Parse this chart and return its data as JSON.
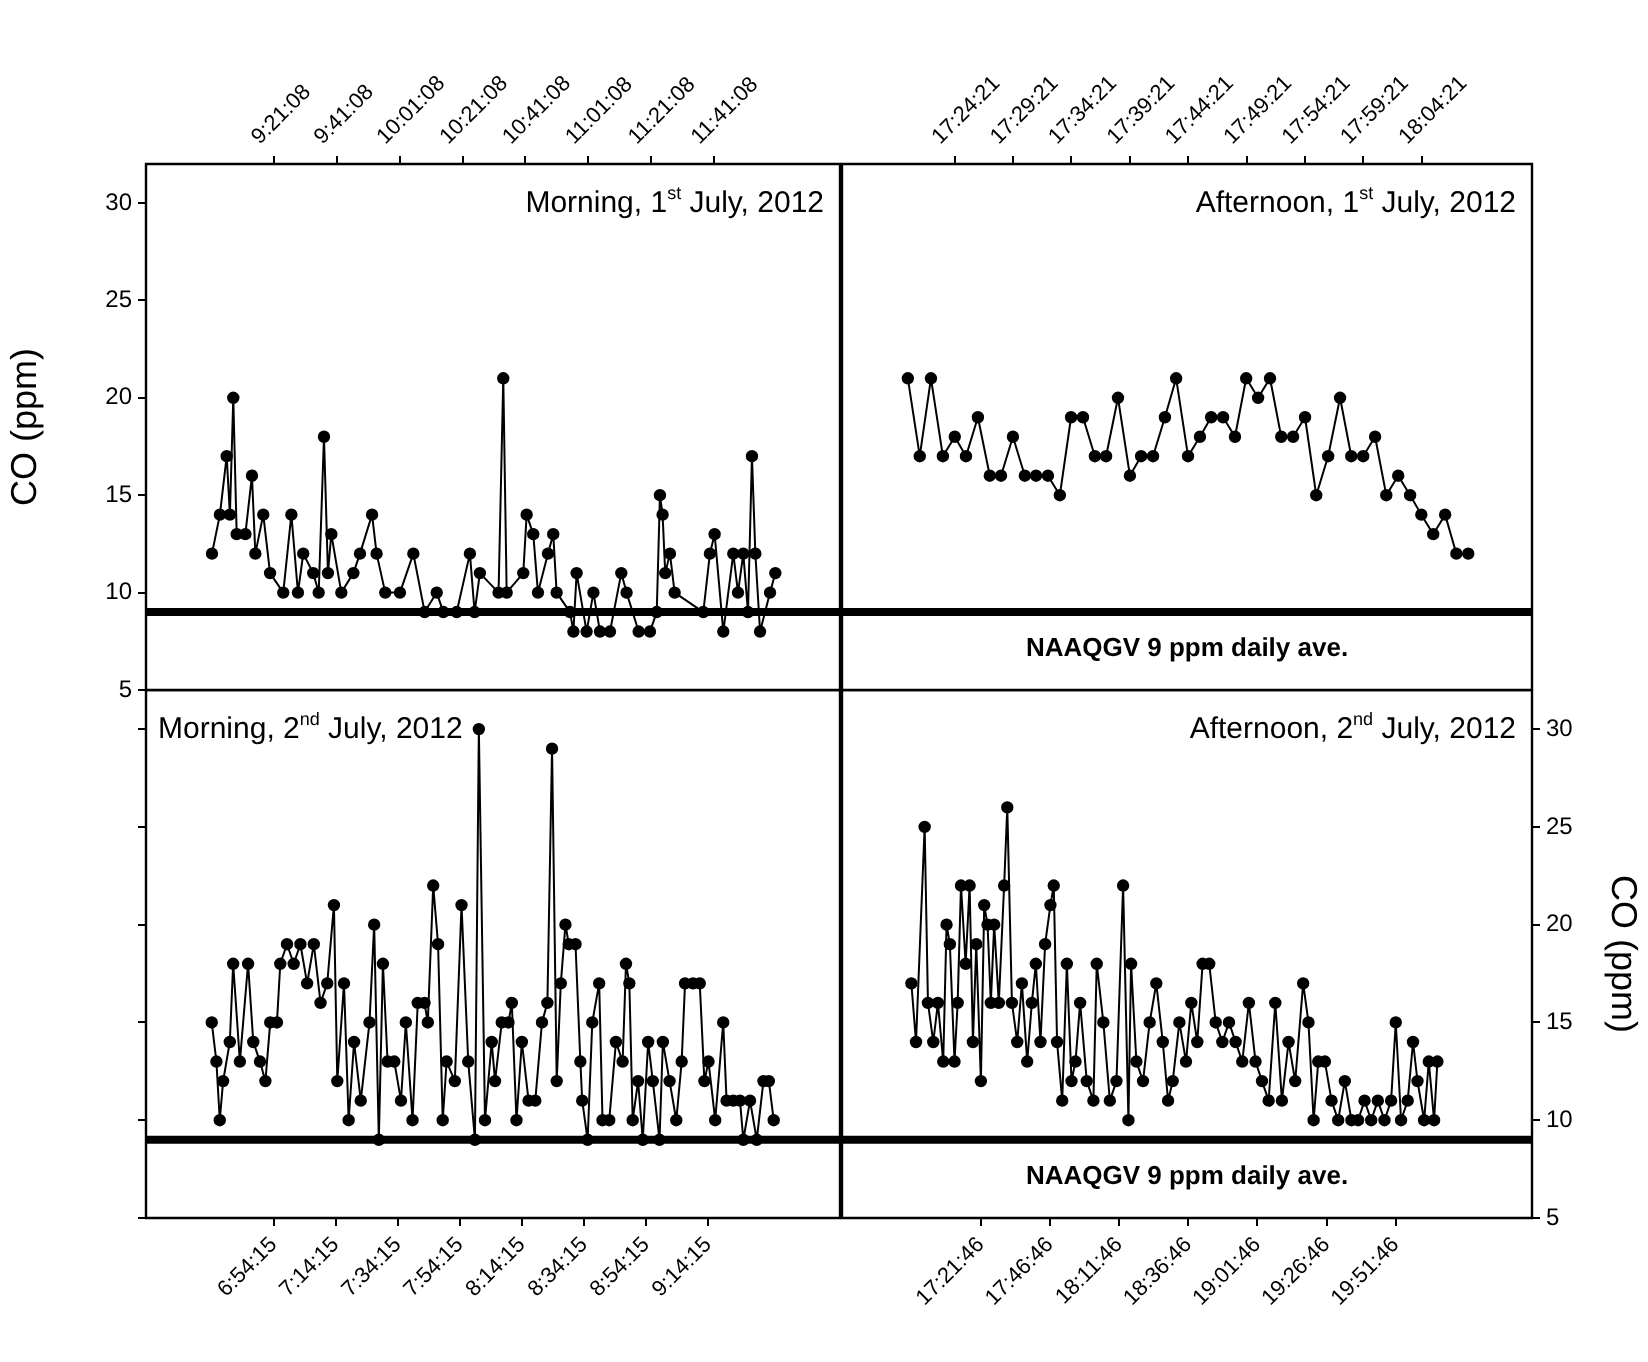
{
  "chart_data": [
    {
      "type": "line",
      "ylabel": "CO (ppm)",
      "annotations": [
        "Morning, 1$^{st}$ July, 2012"
      ],
      "marker": "circle",
      "line_style": "solid",
      "color": "#000000",
      "x": [
        9.023,
        9.065,
        9.101,
        9.118,
        9.136,
        9.154,
        9.2,
        9.235,
        9.253,
        9.295,
        9.331,
        9.401,
        9.444,
        9.479,
        9.507,
        9.56,
        9.589,
        9.617,
        9.638,
        9.656,
        9.709,
        9.773,
        9.808,
        9.872,
        9.896,
        9.942,
        10.02,
        10.091,
        10.151,
        10.215,
        10.25,
        10.321,
        10.391,
        10.416,
        10.444,
        10.543,
        10.568,
        10.586,
        10.674,
        10.692,
        10.727,
        10.752,
        10.805,
        10.833,
        10.851,
        10.922,
        10.94,
        10.957,
        11.01,
        11.046,
        11.081,
        11.134,
        11.194,
        11.222,
        11.286,
        11.346,
        11.382,
        11.399,
        11.413,
        11.427,
        11.452,
        11.477,
        11.629,
        11.664,
        11.689,
        11.735,
        11.788,
        11.813,
        11.841,
        11.866,
        11.887,
        11.905,
        11.93,
        11.983,
        12.011
      ],
      "values": [
        12,
        14,
        17,
        14,
        20,
        13,
        13,
        16,
        12,
        14,
        11,
        10,
        14,
        10,
        12,
        11,
        10,
        18,
        11,
        13,
        10,
        11,
        12,
        14,
        12,
        10,
        10,
        12,
        9,
        10,
        9,
        9,
        12,
        9,
        11,
        10,
        21,
        10,
        11,
        14,
        13,
        10,
        12,
        13,
        10,
        9,
        8,
        11,
        8,
        10,
        8,
        8,
        11,
        10,
        8,
        8,
        9,
        15,
        14,
        11,
        12,
        10,
        9,
        12,
        13,
        8,
        12,
        10,
        12,
        9,
        17,
        12,
        8,
        10,
        11
      ],
      "xlim": [
        8.673,
        12.354
      ],
      "xticks": [
        {
          "value": 9.3522,
          "label": "9:21:08"
        },
        {
          "value": 9.6856,
          "label": "9:41:08"
        },
        {
          "value": 10.0189,
          "label": "10:01:08"
        },
        {
          "value": 10.3522,
          "label": "10:21:08"
        },
        {
          "value": 10.6856,
          "label": "10:41:08"
        },
        {
          "value": 11.0189,
          "label": "11:01:08"
        },
        {
          "value": 11.3522,
          "label": "11:21:08"
        },
        {
          "value": 11.6856,
          "label": "11:41:08"
        }
      ],
      "ylim": [
        5,
        32
      ],
      "yticks": [
        5,
        10,
        15,
        20,
        25,
        30
      ],
      "ref_lines": [
        {
          "axis": "y",
          "value": 9,
          "color": "#000000"
        }
      ]
    },
    {
      "type": "line",
      "annotations": [
        "Afternoon, 1$^{st}$ July, 2012"
      ],
      "marker": "circle",
      "line_style": "solid",
      "color": "#000000",
      "tick_labels": "x",
      "x": [
        17.339,
        17.356,
        17.372,
        17.389,
        17.406,
        17.422,
        17.439,
        17.456,
        17.472,
        17.489,
        17.506,
        17.522,
        17.539,
        17.556,
        17.572,
        17.589,
        17.606,
        17.622,
        17.639,
        17.656,
        17.672,
        17.689,
        17.706,
        17.722,
        17.739,
        17.756,
        17.772,
        17.789,
        17.806,
        17.822,
        17.839,
        17.856,
        17.872,
        17.889,
        17.906,
        17.922,
        17.939,
        17.956,
        17.972,
        17.989,
        18.006,
        18.022,
        18.039,
        18.056,
        18.072,
        18.089,
        18.106,
        18.122,
        18.139
      ],
      "values": [
        21,
        17,
        21,
        17,
        18,
        17,
        19,
        16,
        16,
        18,
        16,
        16,
        16,
        15,
        19,
        19,
        17,
        17,
        20,
        16,
        17,
        17,
        19,
        21,
        17,
        18,
        19,
        19,
        18,
        21,
        20,
        21,
        18,
        18,
        19,
        15,
        17,
        20,
        17,
        17,
        18,
        15,
        16,
        15,
        14,
        13,
        14,
        12,
        12
      ],
      "xlim": [
        17.245,
        18.23
      ],
      "xticks": [
        {
          "value": 17.4058,
          "label": "17:24:21"
        },
        {
          "value": 17.4892,
          "label": "17:29:21"
        },
        {
          "value": 17.5725,
          "label": "17:34:21"
        },
        {
          "value": 17.6558,
          "label": "17:39:21"
        },
        {
          "value": 17.7392,
          "label": "17:44:21"
        },
        {
          "value": 17.8225,
          "label": "17:49:21"
        },
        {
          "value": 17.9058,
          "label": "17:54:21"
        },
        {
          "value": 17.9892,
          "label": "17:59:21"
        },
        {
          "value": 18.0725,
          "label": "18:04:21"
        }
      ],
      "ylim": [
        5,
        32
      ],
      "yticks": [
        5,
        10,
        15,
        20,
        25,
        30
      ],
      "ref_lines": [
        {
          "axis": "y",
          "value": 9,
          "label": "NAAQGV 9 ppm daily ave.",
          "color": "#000000"
        }
      ]
    },
    {
      "type": "line",
      "annotations": [
        "Morning, 2$^{nd}$ July, 2012"
      ],
      "marker": "circle",
      "line_style": "solid",
      "color": "#000000",
      "tick_labels": "x",
      "x": [
        6.572,
        6.597,
        6.615,
        6.633,
        6.669,
        6.687,
        6.723,
        6.767,
        6.795,
        6.831,
        6.86,
        6.886,
        6.922,
        6.94,
        6.976,
        7.012,
        7.048,
        7.084,
        7.12,
        7.156,
        7.192,
        7.228,
        7.246,
        7.282,
        7.307,
        7.336,
        7.372,
        7.419,
        7.444,
        7.469,
        7.491,
        7.516,
        7.552,
        7.588,
        7.614,
        7.65,
        7.678,
        7.714,
        7.732,
        7.761,
        7.787,
        7.812,
        7.833,
        7.877,
        7.913,
        7.949,
        7.985,
        8.006,
        8.039,
        8.075,
        8.093,
        8.129,
        8.165,
        8.183,
        8.208,
        8.237,
        8.273,
        8.309,
        8.345,
        8.374,
        8.399,
        8.424,
        8.446,
        8.471,
        8.489,
        8.525,
        8.551,
        8.561,
        8.59,
        8.615,
        8.652,
        8.67,
        8.706,
        8.742,
        8.778,
        8.796,
        8.814,
        8.832,
        8.861,
        8.886,
        8.915,
        8.94,
        8.976,
        8.994,
        9.03,
        9.066,
        9.095,
        9.113,
        9.156,
        9.192,
        9.217,
        9.239,
        9.275,
        9.318,
        9.336,
        9.372,
        9.408,
        9.426,
        9.462,
        9.498,
        9.534,
        9.563,
        9.589
      ],
      "values": [
        15,
        13,
        10,
        12,
        14,
        18,
        13,
        18,
        14,
        13,
        12,
        15,
        15,
        18,
        19,
        18,
        19,
        17,
        19,
        16,
        17,
        21,
        12,
        17,
        10,
        14,
        11,
        15,
        20,
        9,
        18,
        13,
        13,
        11,
        15,
        10,
        16,
        16,
        15,
        22,
        19,
        10,
        13,
        12,
        21,
        13,
        9,
        30,
        10,
        14,
        12,
        15,
        15,
        16,
        10,
        14,
        11,
        11,
        15,
        16,
        29,
        12,
        17,
        20,
        19,
        19,
        13,
        11,
        9,
        15,
        17,
        10,
        10,
        14,
        13,
        18,
        17,
        10,
        12,
        9,
        14,
        12,
        9,
        14,
        12,
        10,
        13,
        17,
        17,
        17,
        12,
        13,
        10,
        15,
        11,
        11,
        11,
        9,
        11,
        9,
        12,
        12,
        10
      ],
      "xlim": [
        6.219,
        9.945
      ],
      "xticks": [
        {
          "value": 6.9042,
          "label": "6:54:15"
        },
        {
          "value": 7.2375,
          "label": "7:14:15"
        },
        {
          "value": 7.5708,
          "label": "7:34:15"
        },
        {
          "value": 7.9042,
          "label": "7:54:15"
        },
        {
          "value": 8.2375,
          "label": "8:14:15"
        },
        {
          "value": 8.5708,
          "label": "8:34:15"
        },
        {
          "value": 8.9042,
          "label": "8:54:15"
        },
        {
          "value": 9.2375,
          "label": "9:14:15"
        }
      ],
      "ylim": [
        5,
        32
      ],
      "yticks": [
        5,
        10,
        15,
        20,
        25,
        30
      ],
      "ref_lines": [
        {
          "axis": "y",
          "value": 9,
          "color": "#000000"
        }
      ]
    },
    {
      "type": "line",
      "ylabel": "CO (ppm)",
      "annotations": [
        "Afternoon, 2$^{nd}$ July, 2012"
      ],
      "marker": "circle",
      "line_style": "solid",
      "color": "#000000",
      "x": [
        16.944,
        16.972,
        17.024,
        17.044,
        17.076,
        17.104,
        17.136,
        17.156,
        17.176,
        17.204,
        17.223,
        17.243,
        17.271,
        17.295,
        17.315,
        17.335,
        17.363,
        17.383,
        17.403,
        17.423,
        17.443,
        17.471,
        17.503,
        17.522,
        17.55,
        17.582,
        17.61,
        17.642,
        17.67,
        17.694,
        17.722,
        17.75,
        17.782,
        17.802,
        17.822,
        17.853,
        17.881,
        17.909,
        17.933,
        17.961,
        18.001,
        18.041,
        18.061,
        18.101,
        18.14,
        18.18,
        18.22,
        18.252,
        18.268,
        18.3,
        18.34,
        18.38,
        18.42,
        18.459,
        18.491,
        18.519,
        18.559,
        18.599,
        18.631,
        18.667,
        18.699,
        18.739,
        18.778,
        18.818,
        18.858,
        18.898,
        18.938,
        18.978,
        19.018,
        19.057,
        19.097,
        19.137,
        19.177,
        19.217,
        19.257,
        19.305,
        19.337,
        19.368,
        19.396,
        19.436,
        19.476,
        19.516,
        19.556,
        19.596,
        19.636,
        19.675,
        19.715,
        19.755,
        19.795,
        19.835,
        19.863,
        19.895,
        19.935,
        19.967,
        19.994,
        20.034,
        20.062,
        20.094,
        20.114
      ],
      "values": [
        17,
        14,
        25,
        16,
        14,
        16,
        13,
        20,
        19,
        13,
        16,
        22,
        18,
        22,
        14,
        19,
        12,
        21,
        20,
        16,
        20,
        16,
        22,
        26,
        16,
        14,
        17,
        13,
        16,
        18,
        14,
        19,
        21,
        22,
        14,
        11,
        18,
        12,
        13,
        16,
        12,
        11,
        18,
        15,
        11,
        12,
        22,
        10,
        18,
        13,
        12,
        15,
        17,
        14,
        11,
        12,
        15,
        13,
        16,
        14,
        18,
        18,
        15,
        14,
        15,
        14,
        13,
        16,
        13,
        12,
        11,
        16,
        11,
        14,
        12,
        17,
        15,
        10,
        13,
        13,
        11,
        10,
        12,
        10,
        10,
        11,
        10,
        11,
        10,
        11,
        15,
        10,
        11,
        14,
        12,
        10,
        13,
        10,
        13
      ],
      "xlim": [
        16.526,
        20.684
      ],
      "xticks": [
        {
          "value": 17.3628,
          "label": "17:21:46"
        },
        {
          "value": 17.7794,
          "label": "17:46:46"
        },
        {
          "value": 18.1961,
          "label": "18:11:46"
        },
        {
          "value": 18.6128,
          "label": "18:36:46"
        },
        {
          "value": 19.0294,
          "label": "19:01:46"
        },
        {
          "value": 19.4461,
          "label": "19:26:46"
        },
        {
          "value": 19.8628,
          "label": "19:51:46"
        }
      ],
      "ylim": [
        5,
        32
      ],
      "yticks": [
        5,
        10,
        15,
        20,
        25,
        30
      ],
      "ref_lines": [
        {
          "axis": "y",
          "value": 9,
          "label": "NAAQGV 9 ppm daily ave.",
          "color": "#000000"
        }
      ]
    }
  ]
}
